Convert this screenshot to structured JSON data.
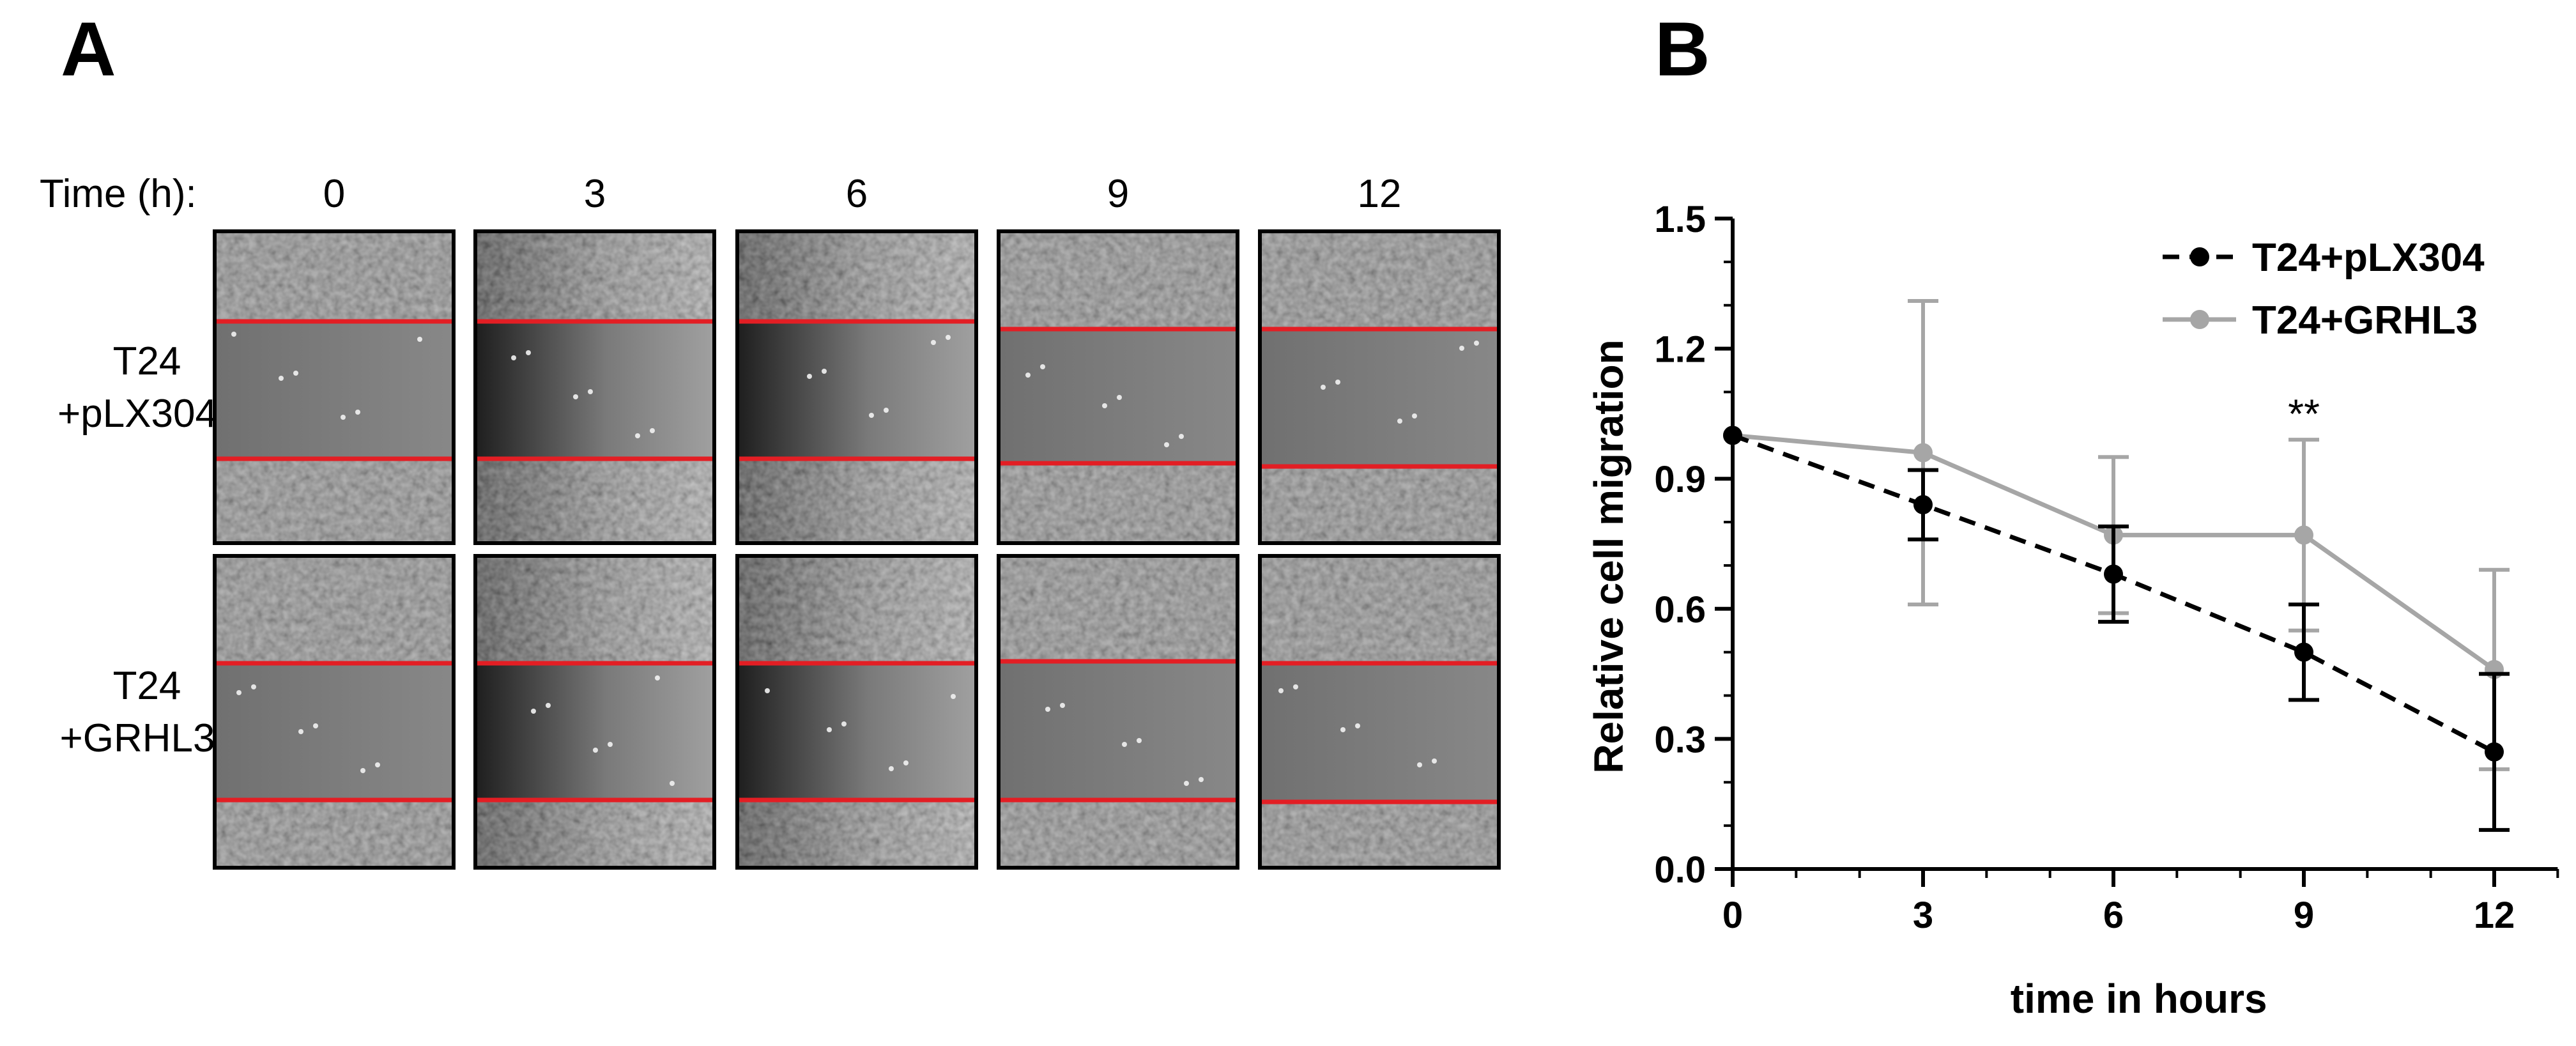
{
  "panel_a": {
    "letter": "A",
    "time_label": "Time (h):",
    "times": [
      "0",
      "3",
      "6",
      "9",
      "12"
    ],
    "rows": [
      {
        "line1": "T24",
        "line2": "+pLX304"
      },
      {
        "line1": "T24",
        "line2": "+GRHL3"
      }
    ]
  },
  "panel_b": {
    "letter": "B"
  },
  "colors": {
    "series_pLX304": "#000000",
    "series_GRHL3": "#a6a6a6",
    "scratch_line": "#e31e24",
    "micrograph": "#7b7b7b"
  },
  "chart_data": {
    "type": "line",
    "xlabel": "time in hours",
    "ylabel": "Relative cell migration",
    "xlim": [
      0,
      13
    ],
    "ylim": [
      0,
      1.5
    ],
    "x_ticks": [
      "0",
      "3",
      "6",
      "9",
      "12"
    ],
    "y_ticks": [
      "0.0",
      "0.3",
      "0.6",
      "0.9",
      "1.2",
      "1.5"
    ],
    "legend_position": "top-right",
    "annotations": [
      {
        "text": "**",
        "x": 9,
        "y": 1.05
      }
    ],
    "series": [
      {
        "name": "T24+pLX304",
        "style": "dashed",
        "x": [
          0,
          3,
          6,
          9,
          12
        ],
        "y": [
          1.0,
          0.84,
          0.68,
          0.5,
          0.27
        ],
        "err": [
          0.0,
          0.08,
          0.11,
          0.11,
          0.18
        ]
      },
      {
        "name": "T24+GRHL3",
        "style": "solid",
        "x": [
          0,
          3,
          6,
          9,
          12
        ],
        "y": [
          1.0,
          0.96,
          0.77,
          0.77,
          0.46
        ],
        "err": [
          0.0,
          0.35,
          0.18,
          0.22,
          0.23
        ]
      }
    ]
  }
}
